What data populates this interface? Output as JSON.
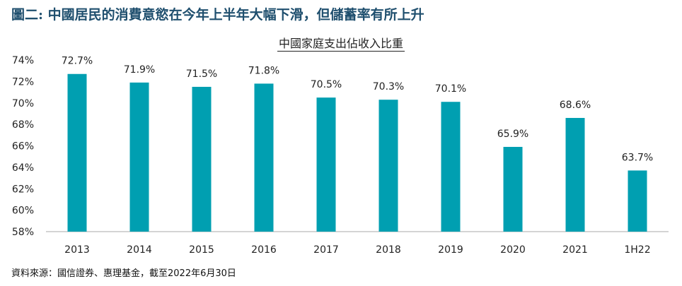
{
  "figure_title": "圖二: 中國居民的消費意慾在今年上半年大幅下滑，但儲蓄率有所上升",
  "source_note": "資料來源：國信證券、惠理基金，截至2022年6月30日",
  "colors": {
    "bar": "#009fb1",
    "title": "#1f4f6e",
    "axis": "#aaaaaa"
  },
  "chart_data": {
    "type": "bar",
    "title": "中國家庭支出佔收入比重",
    "xlabel": "",
    "ylabel": "",
    "ylim": [
      58,
      74
    ],
    "yticks": [
      "58%",
      "60%",
      "62%",
      "64%",
      "66%",
      "68%",
      "70%",
      "72%",
      "74%"
    ],
    "categories": [
      "2013",
      "2014",
      "2015",
      "2016",
      "2017",
      "2018",
      "2019",
      "2020",
      "2021",
      "1H22"
    ],
    "values": [
      72.7,
      71.9,
      71.5,
      71.8,
      70.5,
      70.3,
      70.1,
      65.9,
      68.6,
      63.7
    ],
    "data_labels": [
      "72.7%",
      "71.9%",
      "71.5%",
      "71.8%",
      "70.5%",
      "70.3%",
      "70.1%",
      "65.9%",
      "68.6%",
      "63.7%"
    ],
    "grid": false,
    "legend": "none"
  }
}
